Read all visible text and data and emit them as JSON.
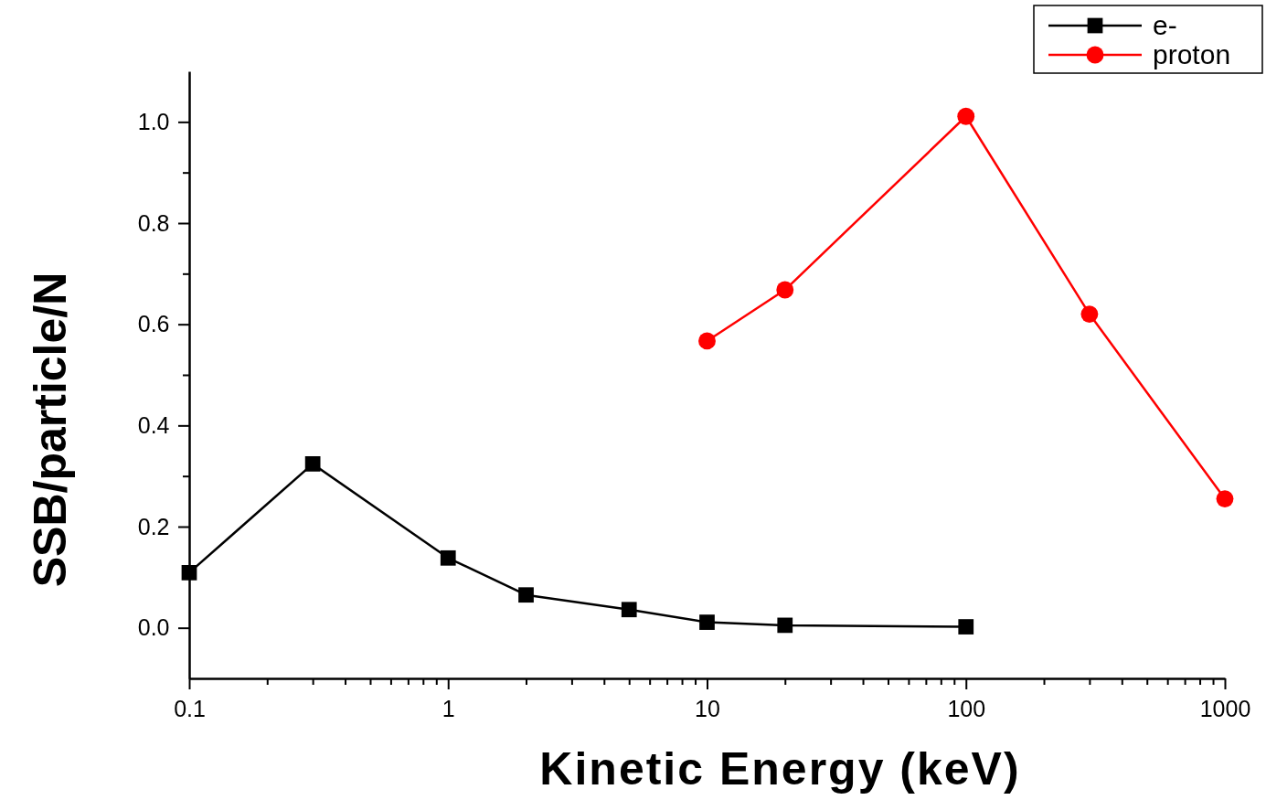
{
  "chart_data": {
    "type": "line",
    "xlabel": "Kinetic Energy (keV)",
    "ylabel": "SSB/particle/N",
    "log": "x",
    "xlim": [
      0.1,
      1000
    ],
    "ylim": [
      -0.1,
      1.1
    ],
    "xticks": [
      0.1,
      {
        "value": 0.2,
        "label": null
      },
      {
        "value": 0.3,
        "label": null
      },
      {
        "value": 0.4,
        "label": null
      },
      {
        "value": 0.5,
        "label": null
      },
      {
        "value": 0.6,
        "label": null
      },
      {
        "value": 0.7,
        "label": null
      },
      {
        "value": 0.8,
        "label": null
      },
      {
        "value": 0.9,
        "label": null
      },
      1,
      {
        "value": 2,
        "label": null
      },
      {
        "value": 3,
        "label": null
      },
      {
        "value": 4,
        "label": null
      },
      {
        "value": 5,
        "label": null
      },
      {
        "value": 6,
        "label": null
      },
      {
        "value": 7,
        "label": null
      },
      {
        "value": 8,
        "label": null
      },
      {
        "value": 9,
        "label": null
      },
      10,
      {
        "value": 20,
        "label": null
      },
      {
        "value": 30,
        "label": null
      },
      {
        "value": 40,
        "label": null
      },
      {
        "value": 50,
        "label": null
      },
      {
        "value": 60,
        "label": null
      },
      {
        "value": 70,
        "label": null
      },
      {
        "value": 80,
        "label": null
      },
      {
        "value": 90,
        "label": null
      },
      100,
      {
        "value": 200,
        "label": null
      },
      {
        "value": 300,
        "label": null
      },
      {
        "value": 400,
        "label": null
      },
      {
        "value": 500,
        "label": null
      },
      {
        "value": 600,
        "label": null
      },
      {
        "value": 700,
        "label": null
      },
      {
        "value": 800,
        "label": null
      },
      {
        "value": 900,
        "label": null
      },
      1000
    ],
    "yticks": [
      {
        "value": 0,
        "label": "0.0"
      },
      {
        "value": 0.1,
        "label": null
      },
      0.2,
      {
        "value": 0.3,
        "label": null
      },
      0.4,
      {
        "value": 0.5,
        "label": null
      },
      0.6,
      {
        "value": 0.7,
        "label": null
      },
      0.8,
      {
        "value": 0.9,
        "label": null
      },
      {
        "value": 1,
        "label": "1.0"
      }
    ],
    "grid": false,
    "legend": "top right",
    "line_style": "solid",
    "series": [
      {
        "name": "e-",
        "color": "#000000",
        "marker": "square",
        "x": [
          0.1,
          0.3,
          1,
          2,
          5,
          10,
          20,
          100
        ],
        "values": [
          0.109,
          0.324,
          0.138,
          0.065,
          0.036,
          0.011,
          0.005,
          0.002
        ]
      },
      {
        "name": "proton",
        "color": "#ff0000",
        "marker": "circle",
        "x": [
          10,
          20,
          100,
          300,
          1000
        ],
        "values": [
          0.567,
          0.668,
          1.011,
          0.62,
          0.255
        ]
      }
    ]
  }
}
